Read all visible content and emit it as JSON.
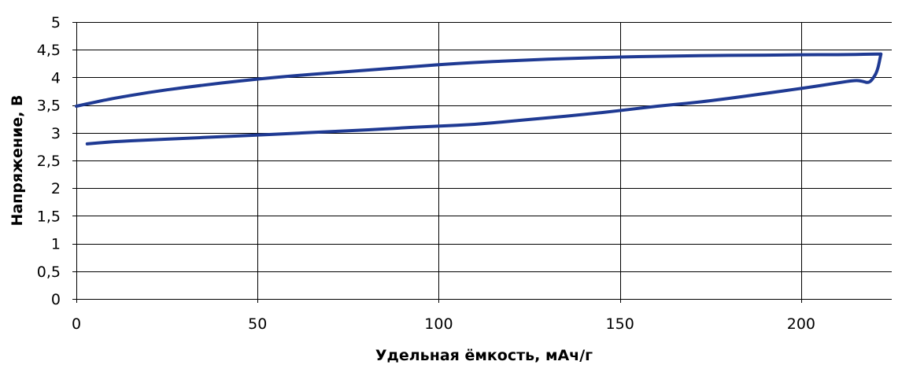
{
  "chart_data": {
    "type": "line",
    "title": "",
    "xlabel": "Удельная ёмкость, мАч/г",
    "ylabel": "Напряжение, В",
    "xlim": [
      0,
      225
    ],
    "ylim": [
      0,
      5
    ],
    "x_ticks": [
      0,
      50,
      100,
      150,
      200
    ],
    "x_tick_labels": [
      "0",
      "50",
      "100",
      "150",
      "200"
    ],
    "y_ticks": [
      0,
      0.5,
      1,
      1.5,
      2,
      2.5,
      3,
      3.5,
      4,
      4.5,
      5
    ],
    "y_tick_labels": [
      "0",
      "0,5",
      "1",
      "1,5",
      "2",
      "2,5",
      "3",
      "3,5",
      "4",
      "4,5",
      "5"
    ],
    "grid": {
      "vertical": true,
      "horizontal": true
    },
    "legend": "none",
    "line_color": "#1f3a93",
    "series": [
      {
        "x": [
          0,
          5,
          10,
          20,
          30,
          40,
          50,
          60,
          70,
          80,
          90,
          100,
          110,
          120,
          130,
          140,
          150,
          160,
          170,
          180,
          190,
          200,
          210,
          220,
          222
        ],
        "y": [
          3.48,
          3.55,
          3.62,
          3.73,
          3.82,
          3.9,
          3.97,
          4.03,
          4.08,
          4.13,
          4.18,
          4.23,
          4.27,
          4.3,
          4.33,
          4.35,
          4.37,
          4.38,
          4.39,
          4.4,
          4.4,
          4.41,
          4.41,
          4.42,
          4.42
        ]
      },
      {
        "x": [
          222,
          221,
          219.5,
          218.5,
          217,
          215,
          210,
          200,
          190,
          180,
          170,
          160,
          150,
          140,
          130,
          120,
          110,
          100,
          90,
          80,
          70,
          60,
          50,
          40,
          30,
          20,
          10,
          3
        ],
        "y": [
          4.42,
          4.1,
          3.95,
          3.9,
          3.93,
          3.95,
          3.9,
          3.8,
          3.71,
          3.62,
          3.54,
          3.48,
          3.4,
          3.33,
          3.27,
          3.21,
          3.15,
          3.12,
          3.09,
          3.05,
          3.02,
          2.99,
          2.96,
          2.93,
          2.9,
          2.87,
          2.84,
          2.8
        ]
      }
    ]
  }
}
